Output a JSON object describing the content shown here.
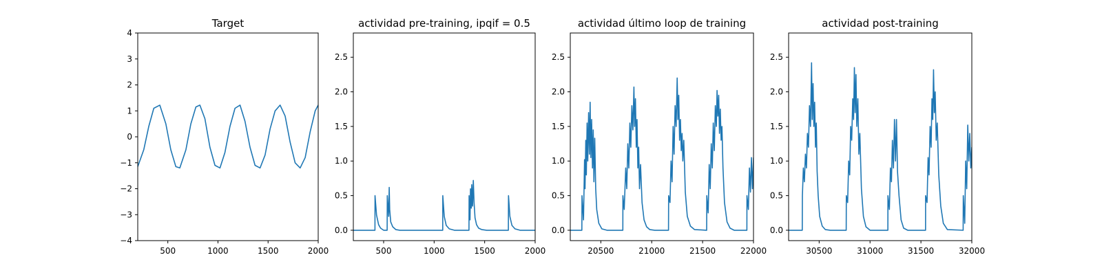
{
  "line_color": "#1f77b4",
  "chart_data": [
    {
      "type": "line",
      "title": "Target",
      "xlabel": "",
      "ylabel": "",
      "xlim": [
        200,
        2000
      ],
      "ylim": [
        -4,
        4
      ],
      "xticks": [
        500,
        1000,
        1500,
        2000
      ],
      "yticks": [
        -4,
        -3,
        -2,
        -1,
        0,
        1,
        2,
        3,
        4
      ],
      "grid": false,
      "series": [
        {
          "x": [
            200,
            260,
            310,
            360,
            420,
            480,
            530,
            580,
            620,
            680,
            730,
            780,
            820,
            870,
            920,
            970,
            1020,
            1070,
            1120,
            1170,
            1220,
            1270,
            1320,
            1370,
            1420,
            1470,
            1520,
            1570,
            1620,
            1670,
            1720,
            1770,
            1820,
            1870,
            1920,
            1970,
            2000
          ],
          "y": [
            -1.15,
            -0.5,
            0.4,
            1.1,
            1.22,
            0.5,
            -0.5,
            -1.15,
            -1.2,
            -0.5,
            0.5,
            1.15,
            1.22,
            0.7,
            -0.4,
            -1.1,
            -1.2,
            -0.6,
            0.4,
            1.1,
            1.22,
            0.6,
            -0.4,
            -1.1,
            -1.2,
            -0.7,
            0.3,
            1.0,
            1.22,
            0.8,
            -0.2,
            -1.0,
            -1.2,
            -0.8,
            0.2,
            1.0,
            1.22
          ]
        }
      ]
    },
    {
      "type": "line",
      "title": "actividad pre-training, ipqif = 0.5",
      "xlabel": "",
      "ylabel": "",
      "xlim": [
        200,
        2000
      ],
      "ylim": [
        -0.15,
        2.85
      ],
      "xticks": [
        500,
        1000,
        1500,
        2000
      ],
      "yticks": [
        0.0,
        0.5,
        1.0,
        1.5,
        2.0,
        2.5
      ],
      "grid": false,
      "series": [
        {
          "x": [
            200,
            414,
            415,
            430,
            450,
            470,
            500,
            535,
            536,
            550,
            555,
            560,
            570,
            590,
            620,
            660,
            700,
            1085,
            1086,
            1100,
            1120,
            1150,
            1200,
            1345,
            1346,
            1355,
            1360,
            1368,
            1372,
            1380,
            1388,
            1395,
            1405,
            1420,
            1440,
            1470,
            1520,
            1735,
            1736,
            1750,
            1770,
            1800,
            1850,
            2000
          ],
          "y": [
            0,
            0,
            0.5,
            0.22,
            0.08,
            0.03,
            0,
            0,
            0.5,
            0.2,
            0.62,
            0.3,
            0.12,
            0.05,
            0.01,
            0,
            0,
            0,
            0.5,
            0.2,
            0.07,
            0.02,
            0,
            0,
            0.5,
            0.15,
            0.6,
            0.32,
            0.66,
            0.35,
            0.72,
            0.4,
            0.18,
            0.08,
            0.03,
            0.01,
            0,
            0,
            0.5,
            0.2,
            0.07,
            0.02,
            0,
            0
          ]
        }
      ]
    },
    {
      "type": "line",
      "title": "actividad último loop de training",
      "xlabel": "",
      "ylabel": "",
      "xlim": [
        20200,
        22000
      ],
      "ylim": [
        -0.15,
        2.85
      ],
      "xticks": [
        20500,
        21000,
        21500,
        22000
      ],
      "yticks": [
        0.0,
        0.5,
        1.0,
        1.5,
        2.0,
        2.5
      ],
      "grid": false,
      "series": [
        {
          "x": [
            20200,
            20314,
            20315,
            20330,
            20340,
            20345,
            20352,
            20358,
            20365,
            20372,
            20380,
            20388,
            20395,
            20402,
            20410,
            20418,
            20425,
            20432,
            20440,
            20450,
            20460,
            20480,
            20510,
            20560,
            20716,
            20717,
            20730,
            20745,
            20755,
            20765,
            20775,
            20785,
            20795,
            20805,
            20815,
            20825,
            20832,
            20840,
            20848,
            20856,
            20864,
            20872,
            20880,
            20890,
            20905,
            20925,
            20950,
            20980,
            21030,
            21165,
            21166,
            21180,
            21190,
            21200,
            21210,
            21220,
            21230,
            21240,
            21250,
            21258,
            21266,
            21274,
            21282,
            21290,
            21298,
            21306,
            21315,
            21330,
            21350,
            21380,
            21420,
            21540,
            21541,
            21555,
            21565,
            21575,
            21585,
            21595,
            21605,
            21615,
            21625,
            21635,
            21642,
            21650,
            21658,
            21666,
            21674,
            21682,
            21690,
            21700,
            21715,
            21740,
            21770,
            21810,
            21935,
            21936,
            21950,
            21960,
            21970,
            21980,
            21990,
            22000
          ],
          "y": [
            0,
            0,
            0.5,
            0.15,
            1.02,
            0.6,
            1.3,
            0.8,
            1.55,
            1.0,
            1.7,
            1.1,
            1.85,
            1.05,
            1.6,
            0.9,
            1.45,
            0.7,
            1.33,
            0.6,
            0.3,
            0.1,
            0.02,
            0,
            0,
            0.5,
            0.3,
            0.9,
            0.6,
            1.25,
            0.9,
            1.55,
            1.2,
            1.8,
            1.45,
            2.07,
            1.5,
            1.9,
            1.2,
            1.6,
            0.9,
            1.2,
            0.6,
            0.95,
            0.4,
            0.15,
            0.05,
            0.01,
            0,
            0,
            0.5,
            0.4,
            1.0,
            0.7,
            1.5,
            1.1,
            1.8,
            1.5,
            2.2,
            1.6,
            1.95,
            1.3,
            1.6,
            1.15,
            1.4,
            1.0,
            1.3,
            0.55,
            0.2,
            0.06,
            0.01,
            0,
            0.5,
            0.25,
            0.95,
            0.6,
            1.25,
            0.9,
            1.55,
            1.15,
            1.8,
            1.5,
            2.02,
            1.65,
            1.95,
            1.4,
            1.75,
            1.3,
            1.5,
            0.9,
            0.4,
            0.12,
            0.03,
            0,
            0,
            0.5,
            0.3,
            0.9,
            0.55,
            1.05,
            0.6,
            1.05
          ]
        }
      ]
    },
    {
      "type": "line",
      "title": "actividad post-training",
      "xlabel": "",
      "ylabel": "",
      "xlim": [
        30200,
        32000
      ],
      "ylim": [
        -0.15,
        2.85
      ],
      "xticks": [
        30500,
        31000,
        31500,
        32000
      ],
      "yticks": [
        0.0,
        0.5,
        1.0,
        1.5,
        2.0,
        2.5
      ],
      "grid": false,
      "series": [
        {
          "x": [
            30200,
            30334,
            30335,
            30345,
            30355,
            30365,
            30375,
            30385,
            30395,
            30405,
            30415,
            30425,
            30432,
            30440,
            30448,
            30456,
            30464,
            30472,
            30480,
            30490,
            30505,
            30530,
            30560,
            30610,
            30766,
            30767,
            30780,
            30790,
            30800,
            30810,
            30820,
            30830,
            30838,
            30846,
            30854,
            30862,
            30870,
            30880,
            30890,
            30900,
            30915,
            30935,
            30960,
            31000,
            31175,
            31176,
            31190,
            31200,
            31210,
            31220,
            31230,
            31240,
            31250,
            31260,
            31270,
            31285,
            31305,
            31330,
            31370,
            31545,
            31546,
            31560,
            31570,
            31580,
            31590,
            31600,
            31608,
            31616,
            31624,
            31632,
            31640,
            31650,
            31660,
            31675,
            31695,
            31720,
            31760,
            31915,
            31916,
            31930,
            31940,
            31950,
            31960,
            31970,
            31980,
            31990,
            32000
          ],
          "y": [
            0,
            0,
            0.5,
            0.9,
            0.7,
            1.1,
            0.9,
            1.4,
            1.2,
            1.8,
            1.5,
            2.42,
            1.6,
            2.12,
            1.5,
            1.85,
            1.2,
            1.55,
            0.85,
            0.5,
            0.2,
            0.06,
            0.01,
            0,
            0,
            0.5,
            0.4,
            1.0,
            0.8,
            1.5,
            1.3,
            1.9,
            1.6,
            2.35,
            1.7,
            2.25,
            1.5,
            1.9,
            1.1,
            1.4,
            0.6,
            0.2,
            0.05,
            0,
            0,
            0.5,
            0.3,
            0.9,
            0.7,
            1.3,
            0.9,
            1.6,
            1.0,
            1.6,
            0.85,
            0.5,
            0.15,
            0.03,
            0,
            0,
            0.5,
            0.4,
            1.05,
            0.8,
            1.5,
            1.2,
            1.9,
            1.6,
            2.32,
            1.7,
            2.0,
            1.3,
            1.55,
            0.8,
            0.35,
            0.1,
            0.01,
            0,
            0.5,
            0.1,
            1.0,
            0.6,
            1.52,
            1.0,
            1.4,
            0.9,
            1.2
          ]
        }
      ]
    }
  ]
}
